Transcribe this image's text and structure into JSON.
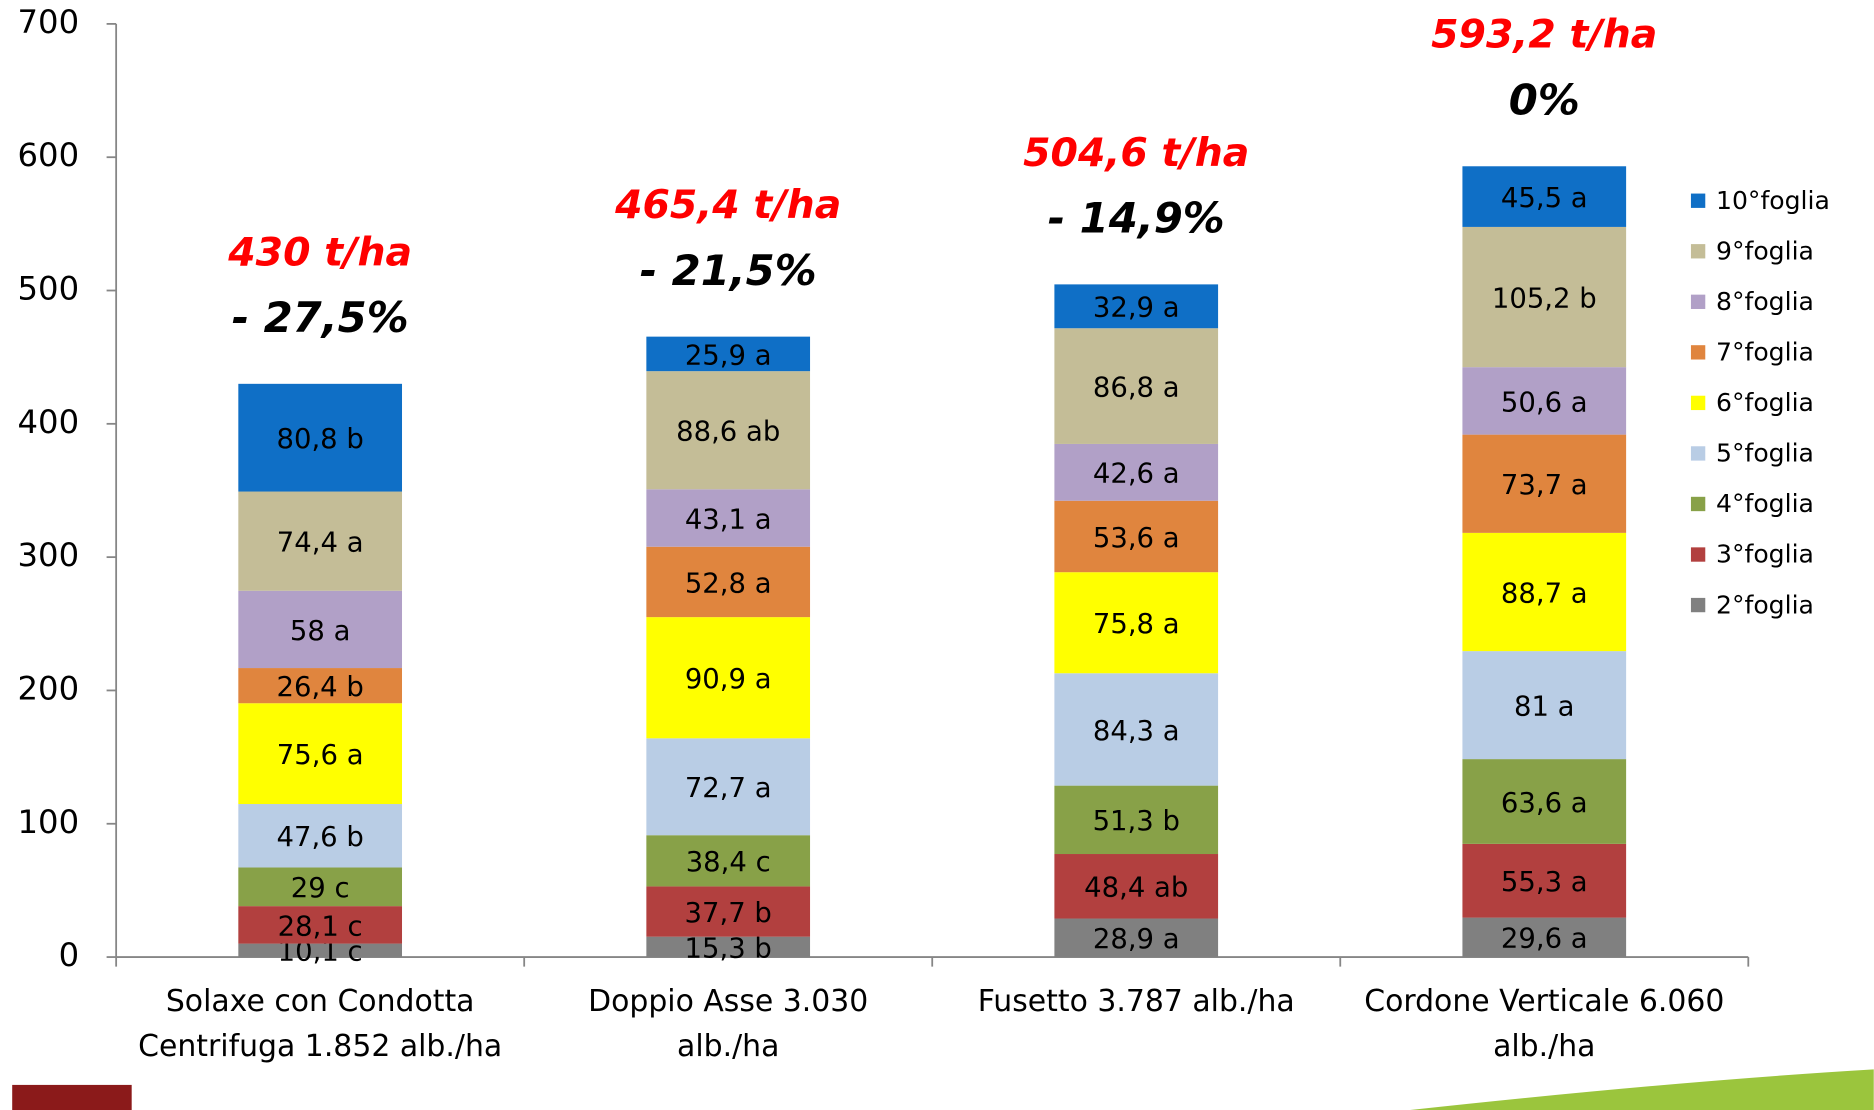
{
  "chart_data": {
    "type": "stacked_bar",
    "categories": [
      "Solaxe con Condotta Centrifuga  1.852 alb./ha",
      "Doppio Asse 3.030 alb./ha",
      "Fusetto 3.787 alb./ha",
      "Cordone Verticale 6.060 alb./ha"
    ],
    "series": [
      {
        "name": "2°foglia",
        "color": "#808080",
        "values": [
          10.1,
          15.3,
          28.9,
          29.6
        ],
        "value_labels": [
          "10,1 c",
          "15,3 b",
          "28,9 a",
          "29,6 a"
        ]
      },
      {
        "name": "3°foglia",
        "color": "#b2403f",
        "values": [
          28.1,
          37.7,
          48.4,
          55.3
        ],
        "value_labels": [
          "28,1 c",
          "37,7 b",
          "48,4 ab",
          "55,3 a"
        ]
      },
      {
        "name": "4°foglia",
        "color": "#88a148",
        "values": [
          29,
          38.4,
          51.3,
          63.6
        ],
        "value_labels": [
          "29 c",
          "38,4 c",
          "51,3 b",
          "63,6 a"
        ]
      },
      {
        "name": "5°foglia",
        "color": "#b9cde5",
        "values": [
          47.6,
          72.7,
          84.3,
          81
        ],
        "value_labels": [
          "47,6 b",
          "72,7 a",
          "84,3 a",
          "81 a"
        ]
      },
      {
        "name": "6°foglia",
        "color": "#ffff00",
        "values": [
          75.6,
          90.9,
          75.8,
          88.7
        ],
        "value_labels": [
          "75,6 a",
          "90,9 a",
          "75,8 a",
          "88,7 a"
        ]
      },
      {
        "name": "7°foglia",
        "color": "#e0853e",
        "values": [
          26.4,
          52.8,
          53.6,
          73.7
        ],
        "value_labels": [
          "26,4 b",
          "52,8 a",
          "53,6 a",
          "73,7 a"
        ]
      },
      {
        "name": "8°foglia",
        "color": "#b1a0c7",
        "values": [
          58,
          43.1,
          42.6,
          50.6
        ],
        "value_labels": [
          "58 a",
          "43,1 a",
          "42,6 a",
          "50,6 a"
        ]
      },
      {
        "name": "9°foglia",
        "color": "#c4bd97",
        "values": [
          74.4,
          88.6,
          86.8,
          105.2
        ],
        "value_labels": [
          "74,4 a",
          "88,6 ab",
          "86,8 a",
          "105,2 b"
        ]
      },
      {
        "name": "10°foglia",
        "color": "#0f6fc6",
        "values": [
          80.8,
          25.9,
          32.9,
          45.5
        ],
        "value_labels": [
          "80,8 b",
          "25,9 a",
          "32,9 a",
          "45,5 a"
        ]
      }
    ],
    "annotations": [
      {
        "total": "430 t/ha",
        "change": "- 27,5%"
      },
      {
        "total": "465,4 t/ha",
        "change": "- 21,5%"
      },
      {
        "total": "504,6 t/ha",
        "change": "- 14,9%"
      },
      {
        "total": "593,2 t/ha",
        "change": "0%"
      }
    ],
    "ylim": [
      0,
      700
    ],
    "yticks": [
      0,
      100,
      200,
      300,
      400,
      500,
      600,
      700
    ],
    "legend": "right"
  }
}
